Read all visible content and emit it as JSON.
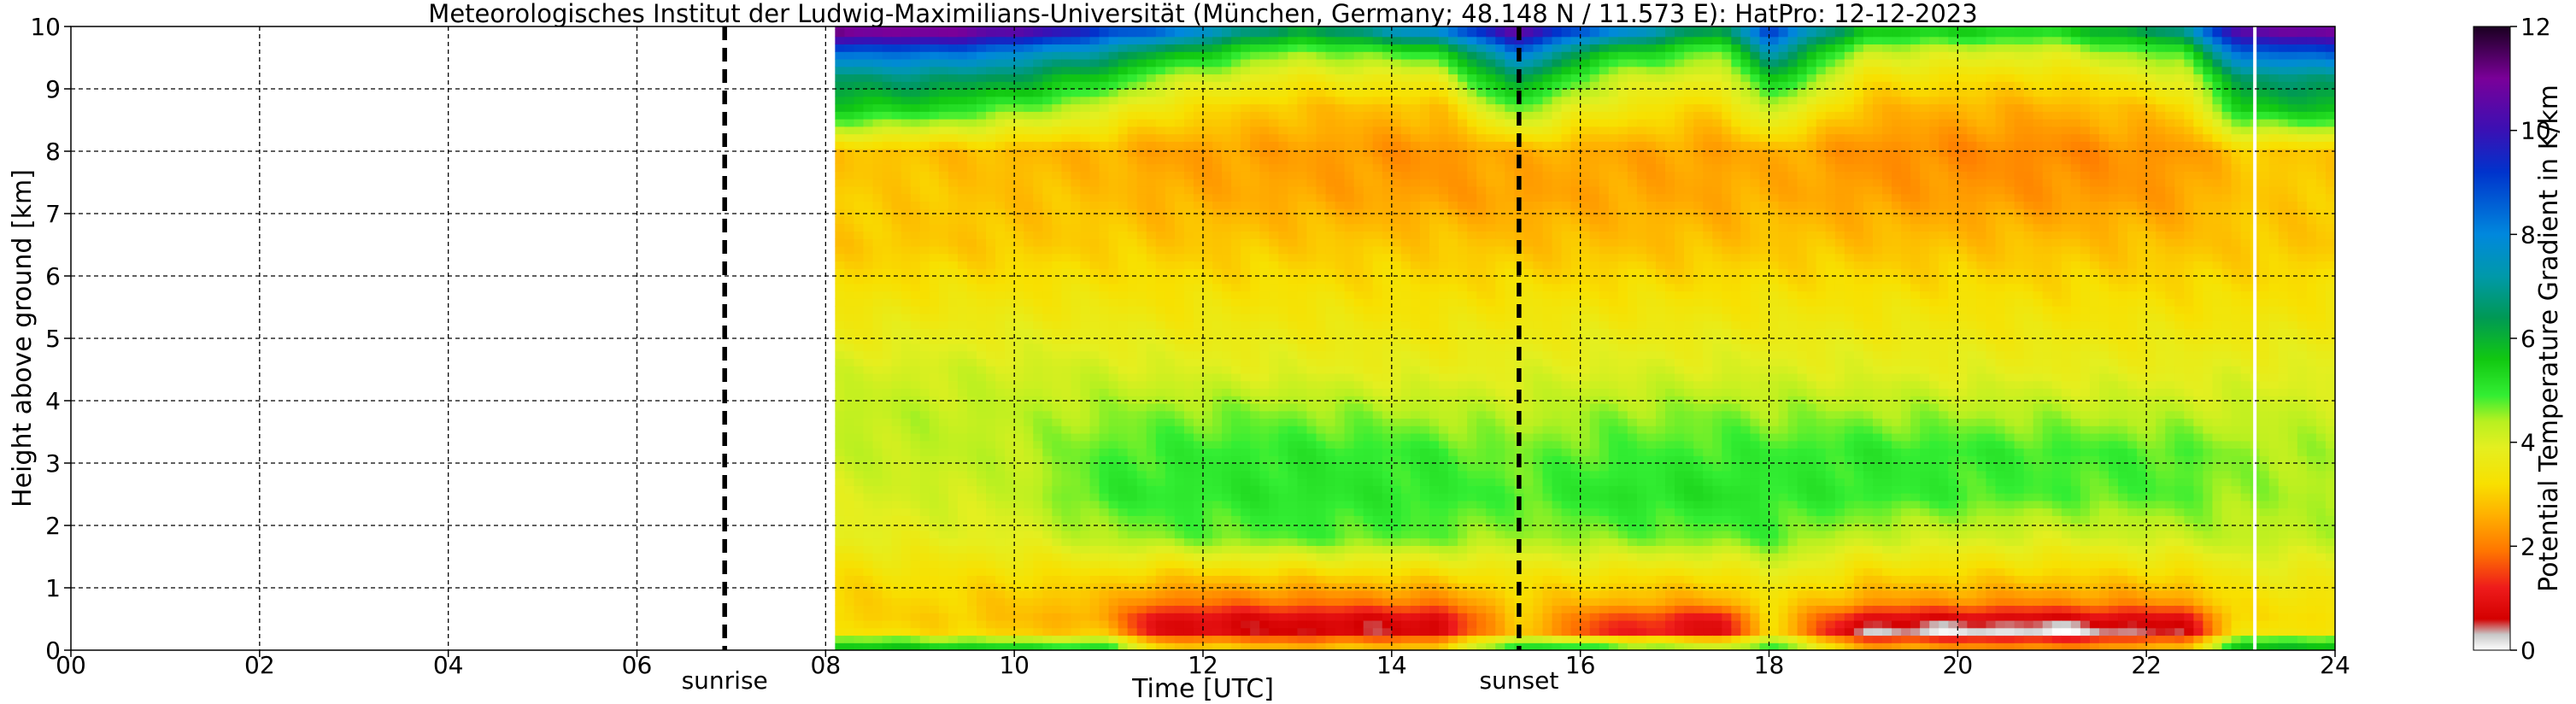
{
  "chart_data": {
    "type": "heatmap",
    "title": "Meteorologisches Institut der Ludwig-Maximilians-Universität (München, Germany; 48.148 N / 11.573 E):    HatPro: 12-12-2023",
    "xlabel": "Time [UTC]",
    "ylabel": "Height above ground [km]",
    "colorbar_label": "Potential Temperature Gradient in K/km",
    "xlim": [
      0,
      24
    ],
    "ylim": [
      0,
      10
    ],
    "clim": [
      0,
      12
    ],
    "x_ticks": [
      0,
      2,
      4,
      6,
      8,
      10,
      12,
      14,
      16,
      18,
      20,
      22,
      24
    ],
    "x_tick_labels": [
      "00",
      "02",
      "04",
      "06",
      "08",
      "10",
      "12",
      "14",
      "16",
      "18",
      "20",
      "22",
      "24"
    ],
    "y_ticks": [
      0,
      1,
      2,
      3,
      4,
      5,
      6,
      7,
      8,
      9,
      10
    ],
    "y_tick_labels": [
      "0",
      "1",
      "2",
      "3",
      "4",
      "5",
      "6",
      "7",
      "8",
      "9",
      "10"
    ],
    "colorbar_ticks": [
      0,
      2,
      4,
      6,
      8,
      10,
      12
    ],
    "colorbar_tick_labels": [
      "0",
      "2",
      "4",
      "6",
      "8",
      "10",
      "12"
    ],
    "grid": true,
    "data_start": 8.1,
    "data_end": 24.0,
    "gap_at": 23.15,
    "events": [
      {
        "label": "sunrise",
        "x": 6.93
      },
      {
        "label": "sunset",
        "x": 15.35
      }
    ],
    "heights": [
      0.1,
      0.3,
      0.5,
      0.8,
      1.2,
      1.8,
      2.5,
      3.2,
      3.8,
      4.5,
      5.5,
      6.5,
      7.3,
      8.0,
      8.7,
      9.2,
      9.6,
      9.9
    ],
    "profiles": [
      {
        "x": 8.1,
        "values": [
          5.5,
          3.2,
          3.0,
          3.0,
          3.2,
          3.8,
          4.0,
          4.2,
          4.3,
          4.0,
          3.4,
          2.9,
          3.0,
          2.8,
          5.6,
          6.6,
          8.4,
          11.0
        ]
      },
      {
        "x": 9.0,
        "values": [
          5.5,
          3.2,
          3.0,
          3.1,
          3.3,
          3.8,
          4.1,
          4.3,
          4.3,
          4.1,
          3.5,
          2.9,
          2.9,
          2.8,
          5.4,
          6.8,
          8.6,
          11.0
        ]
      },
      {
        "x": 10.0,
        "values": [
          5.2,
          3.0,
          2.8,
          2.9,
          3.2,
          3.9,
          4.2,
          4.3,
          4.3,
          4.1,
          3.5,
          2.9,
          2.8,
          2.7,
          4.8,
          6.4,
          8.0,
          10.5
        ]
      },
      {
        "x": 11.0,
        "values": [
          5.0,
          2.8,
          2.4,
          2.7,
          3.2,
          4.4,
          5.0,
          4.8,
          4.5,
          4.1,
          3.5,
          3.0,
          2.8,
          2.6,
          4.0,
          5.5,
          7.0,
          9.0
        ]
      },
      {
        "x": 11.5,
        "values": [
          3.0,
          0.9,
          0.8,
          2.0,
          2.9,
          4.6,
          5.0,
          4.9,
          4.6,
          4.0,
          3.4,
          2.9,
          2.6,
          2.4,
          3.4,
          4.5,
          6.2,
          8.4
        ]
      },
      {
        "x": 13.0,
        "values": [
          2.6,
          0.6,
          0.7,
          2.0,
          3.0,
          4.8,
          5.1,
          5.0,
          4.6,
          3.9,
          3.4,
          2.9,
          2.5,
          2.4,
          2.8,
          3.6,
          4.5,
          6.0
        ]
      },
      {
        "x": 14.5,
        "values": [
          2.8,
          0.7,
          0.7,
          2.1,
          3.1,
          4.7,
          5.0,
          4.9,
          4.4,
          3.8,
          3.3,
          2.9,
          2.4,
          2.2,
          2.8,
          3.8,
          5.2,
          7.8
        ]
      },
      {
        "x": 15.3,
        "values": [
          5.2,
          3.0,
          3.0,
          3.0,
          3.4,
          4.4,
          4.8,
          4.6,
          4.3,
          3.9,
          3.4,
          2.8,
          2.4,
          2.6,
          4.8,
          6.6,
          8.4,
          10.5
        ]
      },
      {
        "x": 16.2,
        "values": [
          4.8,
          1.4,
          1.6,
          2.7,
          3.3,
          4.6,
          5.1,
          4.8,
          4.5,
          4.0,
          3.4,
          2.8,
          2.5,
          2.5,
          3.6,
          4.4,
          5.8,
          8.2
        ]
      },
      {
        "x": 17.5,
        "values": [
          4.0,
          0.8,
          0.9,
          2.5,
          3.2,
          4.7,
          5.2,
          4.9,
          4.6,
          4.0,
          3.4,
          2.8,
          2.5,
          2.4,
          3.0,
          3.8,
          4.6,
          6.0
        ]
      },
      {
        "x": 18.0,
        "values": [
          5.0,
          3.2,
          3.2,
          3.3,
          3.8,
          4.8,
          5.0,
          4.9,
          4.5,
          4.0,
          3.4,
          2.9,
          2.6,
          2.6,
          4.4,
          5.8,
          7.4,
          9.0
        ]
      },
      {
        "x": 19.0,
        "values": [
          2.4,
          0.3,
          0.7,
          2.4,
          3.1,
          4.2,
          5.0,
          5.0,
          4.5,
          3.9,
          3.4,
          2.8,
          2.4,
          2.2,
          2.7,
          3.4,
          4.2,
          5.5
        ]
      },
      {
        "x": 21.0,
        "values": [
          2.0,
          0.1,
          0.6,
          2.2,
          3.0,
          4.0,
          4.8,
          4.9,
          4.4,
          3.8,
          3.3,
          2.8,
          2.3,
          2.1,
          2.6,
          3.2,
          4.0,
          5.2
        ]
      },
      {
        "x": 22.4,
        "values": [
          2.6,
          0.6,
          0.8,
          2.4,
          3.1,
          4.2,
          4.8,
          4.8,
          4.3,
          3.8,
          3.3,
          2.8,
          2.4,
          2.3,
          3.0,
          4.0,
          5.0,
          6.8
        ]
      },
      {
        "x": 23.0,
        "values": [
          5.6,
          3.4,
          3.2,
          3.3,
          3.6,
          4.3,
          4.5,
          4.5,
          4.2,
          3.9,
          3.3,
          2.9,
          2.9,
          2.9,
          5.6,
          6.6,
          8.6,
          10.6
        ]
      },
      {
        "x": 24.0,
        "values": [
          5.8,
          3.4,
          3.2,
          3.3,
          3.6,
          4.3,
          4.4,
          4.4,
          4.2,
          3.9,
          3.4,
          2.9,
          2.9,
          2.9,
          5.8,
          6.9,
          8.8,
          10.8
        ]
      }
    ],
    "colormap": [
      [
        0.0,
        "#ffffff"
      ],
      [
        0.3,
        "#c8c8c8"
      ],
      [
        0.6,
        "#d40000"
      ],
      [
        1.2,
        "#ee1b1b"
      ],
      [
        1.9,
        "#ff7500"
      ],
      [
        2.6,
        "#ffb000"
      ],
      [
        3.2,
        "#f8e000"
      ],
      [
        3.9,
        "#e4ef20"
      ],
      [
        4.4,
        "#b8f020"
      ],
      [
        4.9,
        "#33ee33"
      ],
      [
        5.6,
        "#11c811"
      ],
      [
        6.4,
        "#009955"
      ],
      [
        7.2,
        "#0099aa"
      ],
      [
        8.0,
        "#0088dd"
      ],
      [
        9.2,
        "#0033cc"
      ],
      [
        10.0,
        "#3a10b4"
      ],
      [
        11.0,
        "#7a0099"
      ],
      [
        12.0,
        "#1a0020"
      ]
    ]
  }
}
